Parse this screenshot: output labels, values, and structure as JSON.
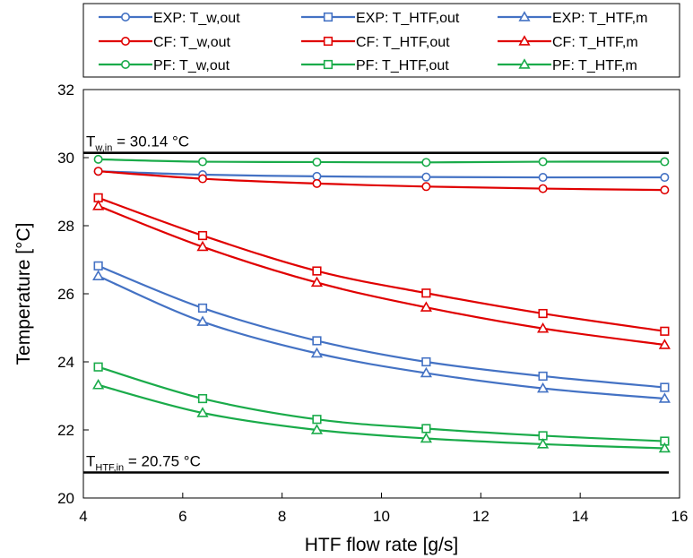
{
  "chart_data": {
    "type": "line",
    "xlabel": "HTF flow rate [g/s]",
    "ylabel": "Temperature [°C]",
    "xlim": [
      4,
      16
    ],
    "ylim": [
      20,
      32
    ],
    "xticks": [
      "4",
      "6",
      "8",
      "10",
      "12",
      "14",
      "16"
    ],
    "yticks": [
      "20",
      "22",
      "24",
      "26",
      "28",
      "30",
      "32"
    ],
    "grid": false,
    "legend": "top",
    "x": [
      4.3,
      6.4,
      8.7,
      10.9,
      13.25,
      15.7
    ],
    "colors": {
      "EXP": "#4472c4",
      "CF": "#e00000",
      "PF": "#1aab4a",
      "ref": "#000000"
    },
    "series": [
      {
        "name": "EXP: T_w,out",
        "group": "EXP",
        "marker": "circle",
        "values": [
          29.6,
          29.5,
          29.45,
          29.43,
          29.42,
          29.42
        ]
      },
      {
        "name": "EXP: T_HTF,out",
        "group": "EXP",
        "marker": "square",
        "values": [
          26.82,
          25.58,
          24.62,
          24.0,
          23.58,
          23.25
        ]
      },
      {
        "name": "EXP: T_HTF,m",
        "group": "EXP",
        "marker": "triangle",
        "values": [
          26.52,
          25.18,
          24.25,
          23.67,
          23.22,
          22.92
        ]
      },
      {
        "name": "CF: T_w,out",
        "group": "CF",
        "marker": "circle",
        "values": [
          29.6,
          29.38,
          29.24,
          29.15,
          29.09,
          29.05
        ]
      },
      {
        "name": "CF: T_HTF,out",
        "group": "CF",
        "marker": "square",
        "values": [
          28.82,
          27.71,
          26.67,
          26.02,
          25.42,
          24.9
        ]
      },
      {
        "name": "CF: T_HTF,m",
        "group": "CF",
        "marker": "triangle",
        "values": [
          28.58,
          27.38,
          26.33,
          25.6,
          24.98,
          24.5
        ]
      },
      {
        "name": "PF: T_w,out",
        "group": "PF",
        "marker": "circle",
        "values": [
          29.95,
          29.88,
          29.87,
          29.86,
          29.88,
          29.88
        ]
      },
      {
        "name": "PF: T_HTF,out",
        "group": "PF",
        "marker": "square",
        "values": [
          23.85,
          22.92,
          22.31,
          22.04,
          21.83,
          21.67
        ]
      },
      {
        "name": "PF: T_HTF,m",
        "group": "PF",
        "marker": "triangle",
        "values": [
          23.32,
          22.5,
          22.0,
          21.75,
          21.58,
          21.46
        ]
      }
    ],
    "reference_lines": [
      {
        "id": "tw-in",
        "value": 30.14,
        "label_main": "T",
        "label_sub": "w,in",
        "label_rest": " = 30.14 °C"
      },
      {
        "id": "htf-in",
        "value": 20.75,
        "label_main": "T",
        "label_sub": "HTF,in",
        "label_rest": " = 20.75 °C"
      }
    ]
  }
}
